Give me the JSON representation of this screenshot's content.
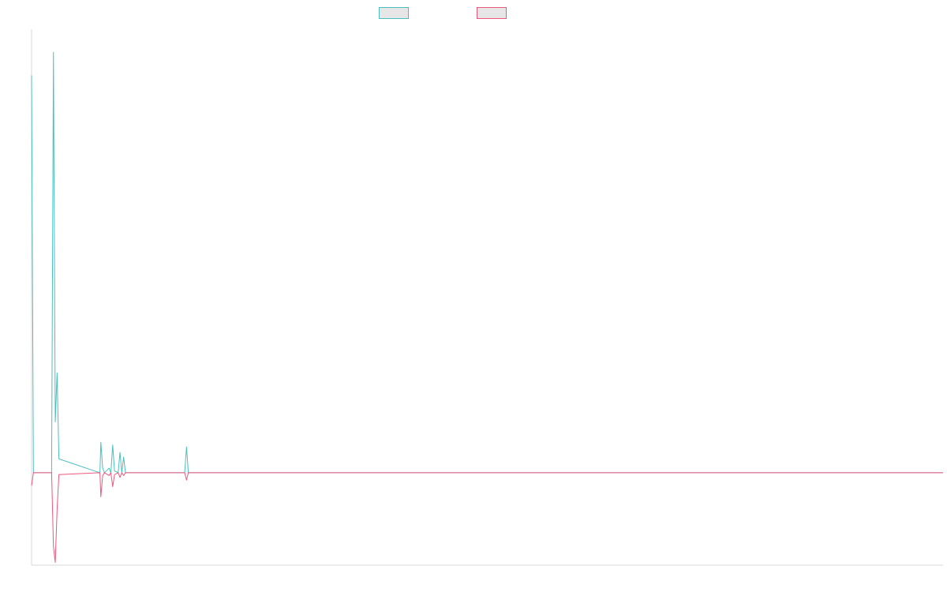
{
  "colors": {
    "series_a": "#4bbfc0",
    "series_b": "#f0567c",
    "axis": "#d9d9d9",
    "swatch_fill": "#e6e6e6"
  },
  "chart_data": {
    "type": "line",
    "title": "",
    "xlabel": "",
    "ylabel": "",
    "grid": false,
    "legend_position": "top-center",
    "xlim": [
      0,
      1000
    ],
    "ylim": [
      -100,
      480
    ],
    "x": [
      0,
      2,
      20,
      22,
      24,
      26,
      28,
      30,
      75,
      76,
      78,
      80,
      85,
      87,
      89,
      91,
      95,
      97,
      99,
      101,
      103,
      110,
      168,
      170,
      172,
      1000
    ],
    "series": [
      {
        "name": "",
        "color_key": "series_a",
        "values": [
          430,
          0,
          0,
          0,
          455,
          55,
          108,
          15,
          0,
          33,
          5,
          0,
          5,
          0,
          30,
          2,
          0,
          22,
          0,
          17,
          0,
          0,
          0,
          28,
          0,
          0
        ]
      },
      {
        "name": "",
        "color_key": "series_b",
        "values": [
          -14,
          0,
          0,
          0,
          -80,
          -97,
          -40,
          -2,
          0,
          -26,
          -3,
          0,
          -3,
          0,
          -15,
          -2,
          0,
          -5,
          0,
          -3,
          0,
          0,
          0,
          -8,
          0,
          0
        ]
      }
    ]
  }
}
